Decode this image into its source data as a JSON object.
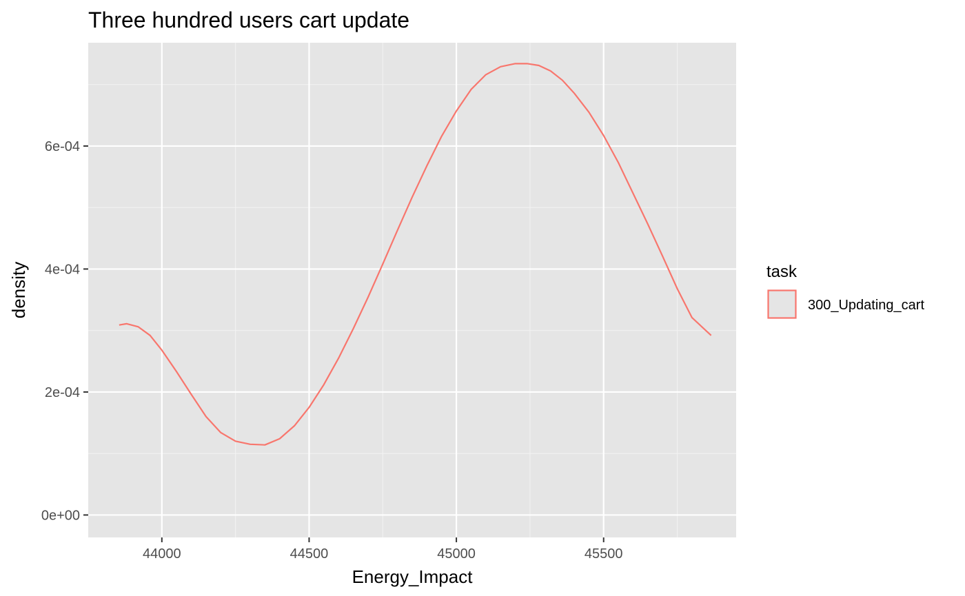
{
  "chart_data": {
    "type": "line",
    "title": "Three hundred users cart update",
    "xlabel": "Energy_Impact",
    "ylabel": "density",
    "xlim": [
      43750,
      45950
    ],
    "ylim": [
      -3.65e-05,
      0.000768
    ],
    "x_ticks": [
      {
        "value": 44000,
        "label": "44000"
      },
      {
        "value": 44500,
        "label": "44500"
      },
      {
        "value": 45000,
        "label": "45000"
      },
      {
        "value": 45500,
        "label": "45500"
      }
    ],
    "y_ticks": [
      {
        "value": 0,
        "label": "0e+00"
      },
      {
        "value": 0.0002,
        "label": "2e-04"
      },
      {
        "value": 0.0004,
        "label": "4e-04"
      },
      {
        "value": 0.0006,
        "label": "6e-04"
      }
    ],
    "grid": true,
    "legend": {
      "title": "task",
      "position": "right",
      "entries": [
        {
          "label": "300_Updating_cart",
          "color": "#F8766D"
        }
      ]
    },
    "colors": {
      "panel": "#E5E5E5",
      "grid_major": "#FFFFFF",
      "grid_minor": "#F2F2F2",
      "line": "#F8766D"
    },
    "series": [
      {
        "color": "#F8766D",
        "points": [
          [
            43855,
            0.000309
          ],
          [
            43880,
            0.000311
          ],
          [
            43920,
            0.000306
          ],
          [
            43960,
            0.000292
          ],
          [
            44000,
            0.000268
          ],
          [
            44050,
            0.000233
          ],
          [
            44100,
            0.000196
          ],
          [
            44150,
            0.00016
          ],
          [
            44200,
            0.000134
          ],
          [
            44250,
            0.00012
          ],
          [
            44300,
            0.000115
          ],
          [
            44350,
            0.000114
          ],
          [
            44400,
            0.000124
          ],
          [
            44450,
            0.000145
          ],
          [
            44500,
            0.000175
          ],
          [
            44550,
            0.000212
          ],
          [
            44600,
            0.000255
          ],
          [
            44650,
            0.000303
          ],
          [
            44700,
            0.000354
          ],
          [
            44750,
            0.000408
          ],
          [
            44800,
            0.000463
          ],
          [
            44850,
            0.000517
          ],
          [
            44900,
            0.000568
          ],
          [
            44950,
            0.000616
          ],
          [
            45000,
            0.000657
          ],
          [
            45050,
            0.000692
          ],
          [
            45100,
            0.000716
          ],
          [
            45150,
            0.000729
          ],
          [
            45200,
            0.000734
          ],
          [
            45240,
            0.000734
          ],
          [
            45280,
            0.000731
          ],
          [
            45320,
            0.000722
          ],
          [
            45360,
            0.000707
          ],
          [
            45400,
            0.000686
          ],
          [
            45450,
            0.000655
          ],
          [
            45500,
            0.000617
          ],
          [
            45550,
            0.000573
          ],
          [
            45600,
            0.000523
          ],
          [
            45650,
            0.000473
          ],
          [
            45700,
            0.000421
          ],
          [
            45750,
            0.000368
          ],
          [
            45800,
            0.000321
          ],
          [
            45865,
            0.000292
          ]
        ]
      }
    ]
  }
}
